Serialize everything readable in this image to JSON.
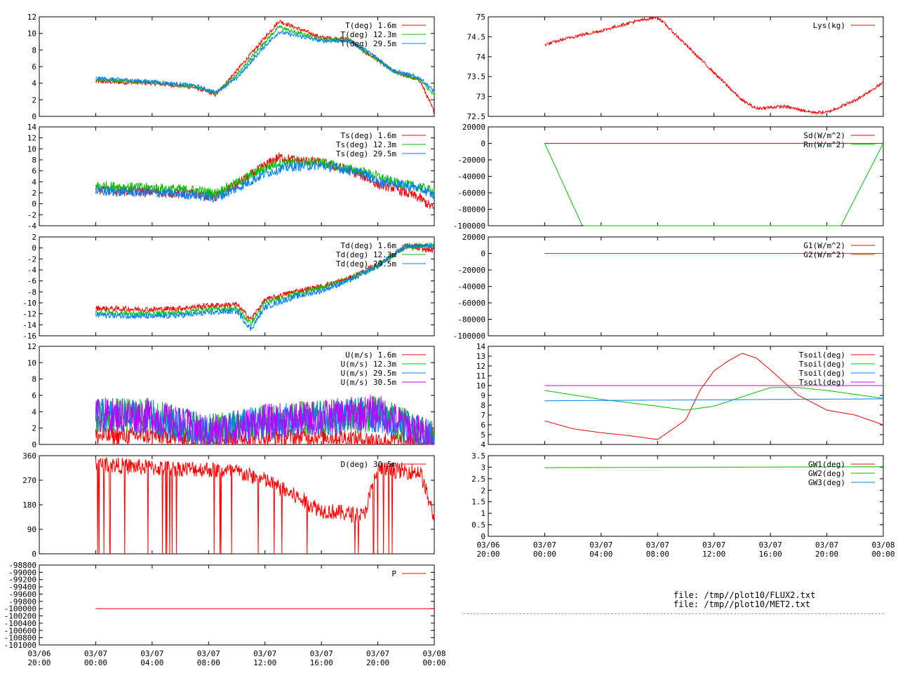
{
  "colors": {
    "red": "#ff0000",
    "green": "#00c000",
    "blue": "#0080ff",
    "magenta": "#c000ff",
    "brown": "#a05a0a",
    "black": "#000000"
  },
  "files": [
    "file: /tmp//plot10/FLUX2.txt",
    "file: /tmp//plot10/MET2.txt"
  ],
  "time_axis": {
    "ticks": [
      "03/06 20:00",
      "03/07 00:00",
      "03/07 04:00",
      "03/07 08:00",
      "03/07 12:00",
      "03/07 16:00",
      "03/07 20:00",
      "03/08 00:00"
    ],
    "start": "2025-03-06 20:00",
    "end": "2025-03-08 00:00"
  },
  "chart_data": [
    {
      "id": "T",
      "type": "line",
      "ylim": [
        0,
        12
      ],
      "yticks": [
        0,
        2,
        4,
        6,
        8,
        10,
        12
      ],
      "series": [
        {
          "name": "T(deg)  1.6m",
          "color": "red",
          "x": [
            "03/07 00:00",
            "03/07 04:00",
            "03/07 07:00",
            "03/07 08:30",
            "03/07 10:00",
            "03/07 12:00",
            "03/07 13:00",
            "03/07 14:00",
            "03/07 16:00",
            "03/07 18:00",
            "03/07 19:00",
            "03/07 20:00",
            "03/07 21:00",
            "03/07 23:00",
            "03/08 00:00"
          ],
          "y": [
            4.2,
            4.0,
            3.5,
            2.6,
            5.5,
            9.5,
            11.5,
            10.8,
            9.5,
            9.3,
            7.8,
            6.8,
            5.5,
            4.3,
            0.5
          ]
        },
        {
          "name": "T(deg) 12.3m",
          "color": "green",
          "x": [
            "03/07 00:00",
            "03/07 04:00",
            "03/07 07:00",
            "03/07 08:30",
            "03/07 10:00",
            "03/07 12:00",
            "03/07 13:00",
            "03/07 14:00",
            "03/07 16:00",
            "03/07 18:00",
            "03/07 19:00",
            "03/07 20:00",
            "03/07 21:00",
            "03/07 23:00",
            "03/08 00:00"
          ],
          "y": [
            4.5,
            4.1,
            3.6,
            2.8,
            5.0,
            9.0,
            10.8,
            10.2,
            9.3,
            9.2,
            8.0,
            6.8,
            5.5,
            4.4,
            2.5
          ]
        },
        {
          "name": "T(deg) 29.5m",
          "color": "blue",
          "x": [
            "03/07 00:00",
            "03/07 04:00",
            "03/07 07:00",
            "03/07 08:30",
            "03/07 10:00",
            "03/07 12:00",
            "03/07 13:00",
            "03/07 14:00",
            "03/07 16:00",
            "03/07 18:00",
            "03/07 19:00",
            "03/07 20:00",
            "03/07 21:00",
            "03/07 23:00",
            "03/08 00:00"
          ],
          "y": [
            4.6,
            4.2,
            3.7,
            2.9,
            4.6,
            8.5,
            10.2,
            9.8,
            9.1,
            9.1,
            8.1,
            7.0,
            5.6,
            4.6,
            3.0
          ]
        }
      ]
    },
    {
      "id": "Ts",
      "type": "line",
      "ylim": [
        -4,
        14
      ],
      "yticks": [
        -4,
        -2,
        0,
        2,
        4,
        6,
        8,
        10,
        12,
        14
      ],
      "series": [
        {
          "name": "Ts(deg)  1.6m",
          "color": "red",
          "x": [
            "03/07 00:00",
            "03/07 04:00",
            "03/07 07:00",
            "03/07 08:30",
            "03/07 10:00",
            "03/07 12:00",
            "03/07 13:00",
            "03/07 14:00",
            "03/07 16:00",
            "03/07 18:00",
            "03/07 19:00",
            "03/07 20:00",
            "03/07 21:00",
            "03/07 23:00",
            "03/08 00:00"
          ],
          "y": [
            2.5,
            2.2,
            1.8,
            1.2,
            3.5,
            7.0,
            8.5,
            8.0,
            7.5,
            6.0,
            5.0,
            3.5,
            3.0,
            1.0,
            -1.0
          ]
        },
        {
          "name": "Ts(deg) 12.3m",
          "color": "green",
          "x": [
            "03/07 00:00",
            "03/07 04:00",
            "03/07 07:00",
            "03/07 08:30",
            "03/07 10:00",
            "03/07 12:00",
            "03/07 13:00",
            "03/07 14:00",
            "03/07 16:00",
            "03/07 18:00",
            "03/07 19:00",
            "03/07 20:00",
            "03/07 21:00",
            "03/07 23:00",
            "03/08 00:00"
          ],
          "y": [
            3.3,
            2.9,
            2.5,
            1.9,
            3.8,
            6.5,
            7.5,
            7.6,
            7.5,
            6.3,
            5.8,
            5.0,
            4.0,
            3.0,
            2.3
          ]
        },
        {
          "name": "Ts(deg) 29.5m",
          "color": "blue",
          "x": [
            "03/07 00:00",
            "03/07 04:00",
            "03/07 07:00",
            "03/07 08:30",
            "03/07 10:00",
            "03/07 12:00",
            "03/07 13:00",
            "03/07 14:00",
            "03/07 16:00",
            "03/07 18:00",
            "03/07 19:00",
            "03/07 20:00",
            "03/07 21:00",
            "03/07 23:00",
            "03/08 00:00"
          ],
          "y": [
            2.3,
            2.0,
            1.6,
            1.0,
            2.8,
            5.5,
            6.3,
            6.8,
            7.0,
            6.1,
            5.5,
            4.0,
            3.8,
            2.8,
            1.5
          ]
        }
      ]
    },
    {
      "id": "Td",
      "type": "line",
      "ylim": [
        -16,
        2
      ],
      "yticks": [
        -16,
        -14,
        -12,
        -10,
        -8,
        -6,
        -4,
        -2,
        0,
        2
      ],
      "series": [
        {
          "name": "Td(deg)  1.6m",
          "color": "red",
          "x": [
            "03/07 00:00",
            "03/07 04:00",
            "03/07 06:00",
            "03/07 08:00",
            "03/07 10:00",
            "03/07 11:00",
            "03/07 12:00",
            "03/07 14:00",
            "03/07 16:00",
            "03/07 18:00",
            "03/07 20:00",
            "03/07 22:00",
            "03/08 00:00"
          ],
          "y": [
            -11.0,
            -11.2,
            -11.0,
            -10.5,
            -10.3,
            -13.0,
            -9.5,
            -8.0,
            -7.0,
            -5.5,
            -3.0,
            0.2,
            -0.5
          ]
        },
        {
          "name": "Td(deg) 12.3m",
          "color": "green",
          "x": [
            "03/07 00:00",
            "03/07 04:00",
            "03/07 06:00",
            "03/07 08:00",
            "03/07 10:00",
            "03/07 11:00",
            "03/07 12:00",
            "03/07 14:00",
            "03/07 16:00",
            "03/07 18:00",
            "03/07 20:00",
            "03/07 22:00",
            "03/08 00:00"
          ],
          "y": [
            -11.8,
            -12.0,
            -11.8,
            -11.2,
            -11.0,
            -13.8,
            -10.0,
            -8.5,
            -7.3,
            -5.7,
            -3.2,
            0.3,
            0.4
          ]
        },
        {
          "name": "Td(deg) 29.5m",
          "color": "blue",
          "x": [
            "03/07 00:00",
            "03/07 04:00",
            "03/07 06:00",
            "03/07 08:00",
            "03/07 10:00",
            "03/07 11:00",
            "03/07 12:00",
            "03/07 14:00",
            "03/07 16:00",
            "03/07 18:00",
            "03/07 20:00",
            "03/07 22:00",
            "03/08 00:00"
          ],
          "y": [
            -12.2,
            -12.5,
            -12.3,
            -11.8,
            -11.5,
            -14.8,
            -10.8,
            -9.0,
            -7.8,
            -5.9,
            -3.3,
            0.4,
            0.5
          ]
        }
      ]
    },
    {
      "id": "U",
      "type": "line",
      "ylim": [
        0,
        12
      ],
      "yticks": [
        0,
        2,
        4,
        6,
        8,
        10,
        12
      ],
      "series": [
        {
          "name": "U(m/s)  1.6m",
          "color": "red",
          "x": [
            "03/07 00:00",
            "03/07 04:00",
            "03/07 08:00",
            "03/07 12:00",
            "03/07 16:00",
            "03/07 20:00",
            "03/08 00:00"
          ],
          "y": [
            1.0,
            1.1,
            0.6,
            0.9,
            1.0,
            0.5,
            0.3
          ]
        },
        {
          "name": "U(m/s) 12.3m",
          "color": "green",
          "x": [
            "03/07 00:00",
            "03/07 04:00",
            "03/07 08:00",
            "03/07 12:00",
            "03/07 16:00",
            "03/07 20:00",
            "03/08 00:00"
          ],
          "y": [
            3.6,
            3.4,
            1.5,
            2.8,
            3.2,
            3.8,
            0.6
          ]
        },
        {
          "name": "U(m/s) 29.5m",
          "color": "blue",
          "x": [
            "03/07 00:00",
            "03/07 04:00",
            "03/07 08:00",
            "03/07 12:00",
            "03/07 16:00",
            "03/07 20:00",
            "03/08 00:00"
          ],
          "y": [
            3.5,
            3.3,
            1.5,
            2.7,
            3.1,
            3.7,
            0.6
          ]
        },
        {
          "name": "U(m/s) 30.5m",
          "color": "magenta",
          "x": [
            "03/07 00:00",
            "03/07 04:00",
            "03/07 08:00",
            "03/07 12:00",
            "03/07 16:00",
            "03/07 20:00",
            "03/08 00:00"
          ],
          "y": [
            3.6,
            3.5,
            1.4,
            2.8,
            3.3,
            4.0,
            0.6
          ]
        }
      ]
    },
    {
      "id": "D",
      "type": "line",
      "ylim": [
        0,
        360
      ],
      "yticks": [
        0,
        90,
        180,
        270,
        360
      ],
      "series": [
        {
          "name": "D(deg)  30.5m",
          "color": "red",
          "x": [
            "03/07 00:00",
            "03/07 04:00",
            "03/07 08:00",
            "03/07 10:00",
            "03/07 12:00",
            "03/07 16:00",
            "03/07 19:00",
            "03/07 20:00",
            "03/07 23:00",
            "03/08 00:00"
          ],
          "y": [
            330,
            315,
            310,
            300,
            270,
            160,
            140,
            310,
            300,
            130
          ]
        }
      ]
    },
    {
      "id": "P",
      "type": "line",
      "ylim": [
        -101000,
        -98800
      ],
      "yticks": [
        -101000,
        -100800,
        -100600,
        -100400,
        -100200,
        -100000,
        -99800,
        -99600,
        -99400,
        -99200,
        -99000,
        -98800
      ],
      "series": [
        {
          "name": "P",
          "color": "red",
          "x": [
            "03/07 00:00",
            "03/08 00:00"
          ],
          "y": [
            -100000,
            -100000
          ]
        }
      ]
    },
    {
      "id": "Lys",
      "type": "line",
      "ylim": [
        72.5,
        75
      ],
      "yticks": [
        72.5,
        73,
        73.5,
        74,
        74.5,
        75
      ],
      "series": [
        {
          "name": "Lys(kg)",
          "color": "red",
          "x": [
            "03/07 00:00",
            "03/07 02:00",
            "03/07 04:00",
            "03/07 06:00",
            "03/07 08:00",
            "03/07 10:00",
            "03/07 12:00",
            "03/07 14:00",
            "03/07 15:00",
            "03/07 17:00",
            "03/07 19:00",
            "03/07 20:00",
            "03/07 22:00",
            "03/08 00:00"
          ],
          "y": [
            74.3,
            74.5,
            74.65,
            74.85,
            75.0,
            74.3,
            73.6,
            72.9,
            72.7,
            72.75,
            72.6,
            72.6,
            72.9,
            73.35
          ]
        }
      ]
    },
    {
      "id": "Rad",
      "type": "line",
      "ylim": [
        -100000,
        20000
      ],
      "yticks": [
        -100000,
        -80000,
        -60000,
        -40000,
        -20000,
        0,
        20000
      ],
      "series": [
        {
          "name": "Sd(W/m^2)",
          "color": "red",
          "x": [
            "03/07 00:00",
            "03/08 00:00"
          ],
          "y": [
            0,
            0
          ]
        },
        {
          "name": "Rn(W/m^2)",
          "color": "green",
          "x": [
            "03/07 00:00",
            "03/07 02:40",
            "03/07 21:00",
            "03/08 00:00"
          ],
          "y": [
            0,
            -100000,
            -100000,
            0
          ]
        }
      ]
    },
    {
      "id": "G",
      "type": "line",
      "ylim": [
        -100000,
        20000
      ],
      "yticks": [
        -100000,
        -80000,
        -60000,
        -40000,
        -20000,
        0,
        20000
      ],
      "series": [
        {
          "name": "G1(W/m^2)",
          "color": "red",
          "x": [
            "03/07 00:00",
            "03/08 00:00"
          ],
          "y": [
            0,
            0
          ]
        },
        {
          "name": "G2(W/m^2)",
          "color": "brown",
          "x": [
            "03/07 00:00",
            "03/08 00:00"
          ],
          "y": [
            0,
            0
          ]
        }
      ]
    },
    {
      "id": "Tsoil",
      "type": "line",
      "ylim": [
        4,
        14
      ],
      "yticks": [
        4,
        5,
        6,
        7,
        8,
        9,
        10,
        11,
        12,
        13,
        14
      ],
      "series": [
        {
          "name": "Tsoil(deg)",
          "color": "red",
          "x": [
            "03/07 00:00",
            "03/07 02:00",
            "03/07 04:00",
            "03/07 06:00",
            "03/07 07:00",
            "03/07 08:00",
            "03/07 10:00",
            "03/07 11:00",
            "03/07 12:00",
            "03/07 13:00",
            "03/07 14:00",
            "03/07 15:00",
            "03/07 16:00",
            "03/07 18:00",
            "03/07 20:00",
            "03/07 22:00",
            "03/08 00:00"
          ],
          "y": [
            6.4,
            5.6,
            5.2,
            4.9,
            4.7,
            4.5,
            6.5,
            9.5,
            11.5,
            12.5,
            13.3,
            12.8,
            11.6,
            9.0,
            7.5,
            7.0,
            6.0
          ]
        },
        {
          "name": "Tsoil(deg)",
          "color": "green",
          "x": [
            "03/07 00:00",
            "03/07 04:00",
            "03/07 08:00",
            "03/07 10:00",
            "03/07 12:00",
            "03/07 16:00",
            "03/07 18:00",
            "03/07 20:00",
            "03/07 22:00",
            "03/08 00:00"
          ],
          "y": [
            9.5,
            8.6,
            7.9,
            7.5,
            7.9,
            9.8,
            9.8,
            9.5,
            9.1,
            8.7
          ]
        },
        {
          "name": "Tsoil(deg)",
          "color": "blue",
          "x": [
            "03/07 00:00",
            "03/07 12:00",
            "03/08 00:00"
          ],
          "y": [
            8.45,
            8.55,
            8.65
          ]
        },
        {
          "name": "Tsoil(deg)",
          "color": "magenta",
          "x": [
            "03/07 00:00",
            "03/08 00:00"
          ],
          "y": [
            10.0,
            10.0
          ]
        }
      ]
    },
    {
      "id": "GW",
      "type": "line",
      "ylim": [
        0,
        3.5
      ],
      "yticks": [
        0,
        0.5,
        1,
        1.5,
        2,
        2.5,
        3,
        3.5
      ],
      "series": [
        {
          "name": "GW1(deg)",
          "color": "red",
          "x": [],
          "y": []
        },
        {
          "name": "GW2(deg)",
          "color": "green",
          "x": [
            "03/07 00:00",
            "03/08 00:00"
          ],
          "y": [
            2.98,
            3.02
          ]
        },
        {
          "name": "GW3(deg)",
          "color": "blue",
          "x": [],
          "y": []
        }
      ]
    }
  ]
}
